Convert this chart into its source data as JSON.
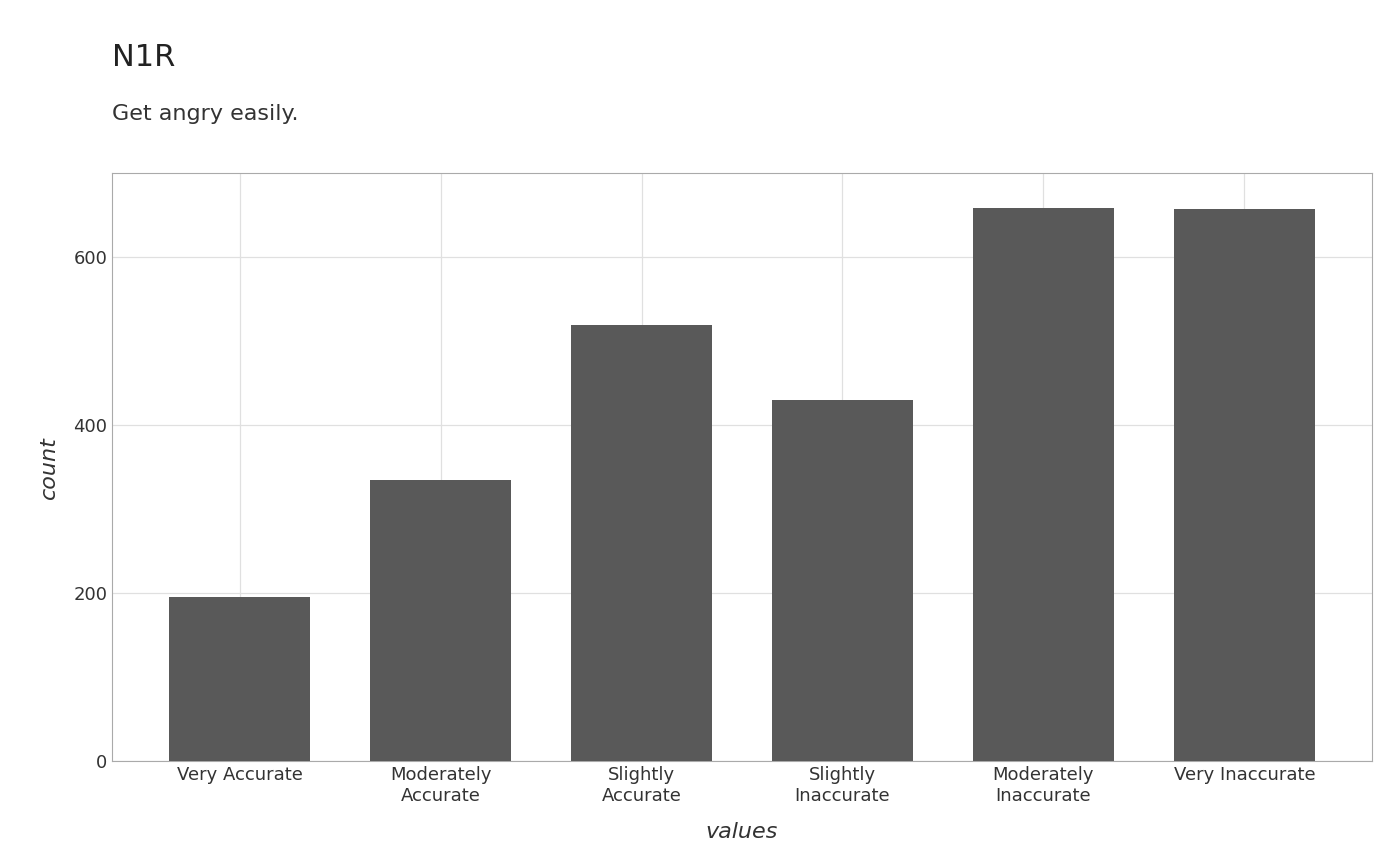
{
  "title": "N1R",
  "subtitle": "Get angry easily.",
  "xlabel": "values",
  "ylabel": "count",
  "categories": [
    "Very Accurate",
    "Moderately\nAccurate",
    "Slightly\nAccurate",
    "Slightly\nInaccurate",
    "Moderately\nInaccurate",
    "Very Inaccurate"
  ],
  "values": [
    196,
    335,
    519,
    430,
    658,
    657
  ],
  "bar_color": "#595959",
  "background_color": "#ffffff",
  "plot_background_color": "#ffffff",
  "grid_color": "#e0e0e0",
  "ylim": [
    0,
    700
  ],
  "yticks": [
    0,
    200,
    400,
    600
  ],
  "title_fontsize": 22,
  "subtitle_fontsize": 16,
  "axis_label_fontsize": 16,
  "tick_fontsize": 13
}
